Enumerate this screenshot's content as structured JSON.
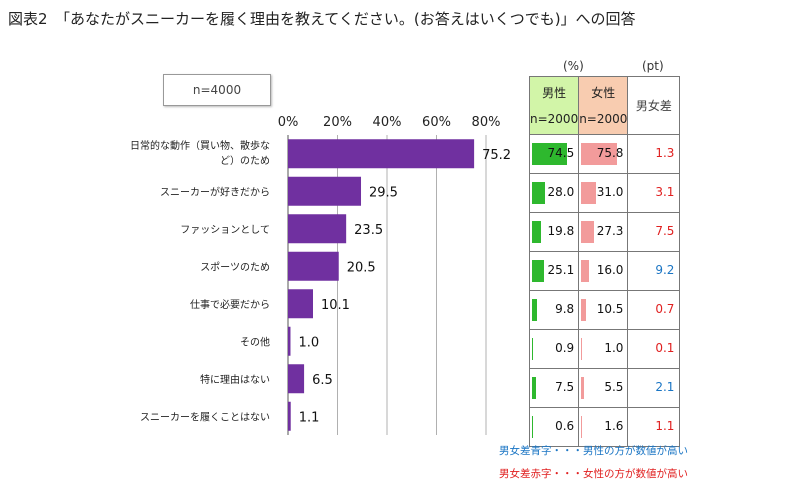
{
  "title": "図表2　「あなたがスニーカーを履く理由を教えてください。(お答えはいくつでも)」への回答",
  "sample": "n=4000",
  "units": {
    "pct": "(%)",
    "pt": "(pt)"
  },
  "table_header": {
    "male": "男性",
    "male_n": "n=2000",
    "female": "女性",
    "female_n": "n=2000",
    "diff": "男女差"
  },
  "colors": {
    "bar": "#7030a0",
    "male": "#2eb82e",
    "female": "#f29b9b",
    "blue": "#1a75c4",
    "red": "#e02020"
  },
  "legend": {
    "blue": "男女差青字・・・男性の方が数値が高い",
    "red": "男女差赤字・・・女性の方が数値が高い"
  },
  "chart_data": {
    "type": "bar",
    "orientation": "horizontal",
    "xlim": [
      0,
      80
    ],
    "ticks": [
      "0%",
      "20%",
      "40%",
      "60%",
      "80%"
    ],
    "categories": [
      [
        "日常的な動作（買い物、散歩な",
        "ど）のため"
      ],
      [
        "スニーカーが好きだから"
      ],
      [
        "ファッションとして"
      ],
      [
        "スポーツのため"
      ],
      [
        "仕事で必要だから"
      ],
      [
        "その他"
      ],
      [
        "特に理由はない"
      ],
      [
        "スニーカーを履くことはない"
      ]
    ],
    "values": [
      75.2,
      29.5,
      23.5,
      20.5,
      10.1,
      1.0,
      6.5,
      1.1
    ],
    "labels": [
      "75.2",
      "29.5",
      "23.5",
      "20.5",
      "10.1",
      "1.0",
      "6.5",
      "1.1"
    ],
    "male": [
      74.5,
      28.0,
      19.8,
      25.1,
      9.8,
      0.9,
      7.5,
      0.6
    ],
    "male_labels": [
      "74.5",
      "28.0",
      "19.8",
      "25.1",
      "9.8",
      "0.9",
      "7.5",
      "0.6"
    ],
    "female": [
      75.8,
      31.0,
      27.3,
      16.0,
      10.5,
      1.0,
      5.5,
      1.6
    ],
    "female_labels": [
      "75.8",
      "31.0",
      "27.3",
      "16.0",
      "10.5",
      "1.0",
      "5.5",
      "1.6"
    ],
    "diff": [
      "1.3",
      "3.1",
      "7.5",
      "9.2",
      "0.7",
      "0.1",
      "2.1",
      "1.1"
    ],
    "diff_color": [
      "red",
      "red",
      "red",
      "blue",
      "red",
      "red",
      "blue",
      "red"
    ]
  }
}
